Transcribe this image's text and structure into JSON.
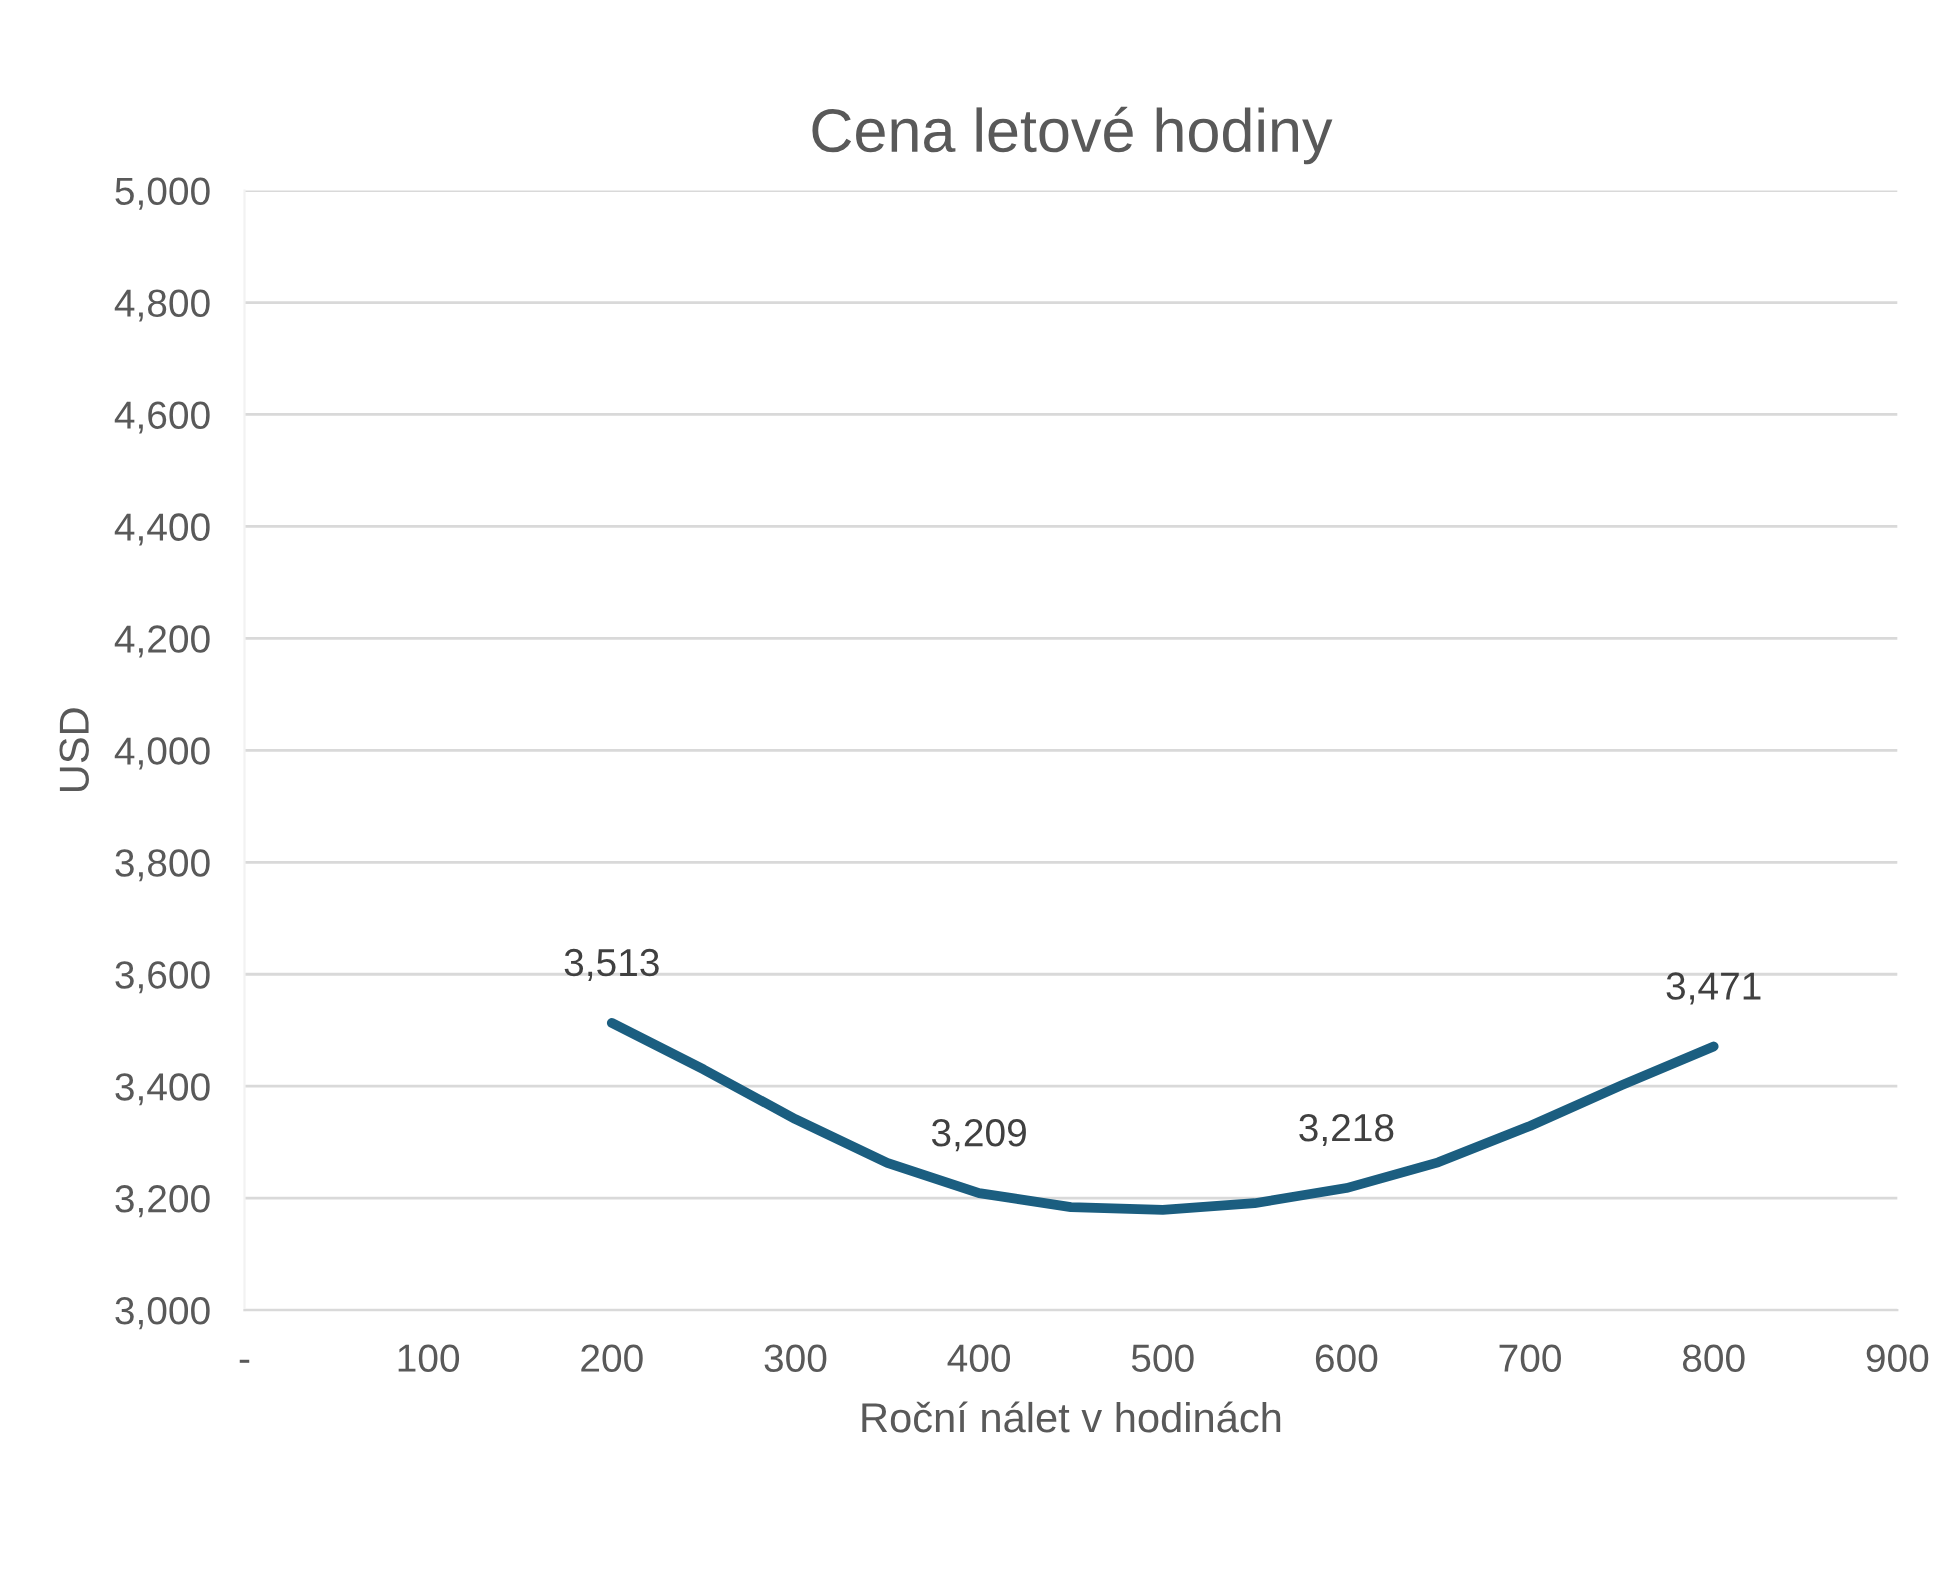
{
  "chart_data": {
    "type": "line",
    "title": "Cena letové hodiny",
    "xlabel": "Roční nálet v hodinách",
    "ylabel": "USD",
    "x": [
      200,
      250,
      300,
      350,
      400,
      450,
      500,
      550,
      600,
      650,
      700,
      750,
      800
    ],
    "series": [
      {
        "color": "#1b5e80",
        "values": [
          3513,
          3430,
          3341,
          3263,
          3209,
          3184,
          3179,
          3191,
          3218,
          3264,
          3329,
          3402,
          3471
        ],
        "value_labels": [
          "3,513",
          null,
          null,
          null,
          "3,209",
          null,
          null,
          null,
          "3,218",
          null,
          null,
          null,
          "3,471"
        ]
      }
    ],
    "xlim": [
      0,
      900
    ],
    "xticks": [
      {
        "value": 0,
        "label": "-"
      },
      100,
      200,
      300,
      400,
      500,
      600,
      700,
      800,
      900
    ],
    "ylim": [
      3000,
      5000
    ],
    "yticks": [
      {
        "value": 3000,
        "label": "3,000"
      },
      {
        "value": 3200,
        "label": "3,200"
      },
      {
        "value": 3400,
        "label": "3,400"
      },
      {
        "value": 3600,
        "label": "3,600"
      },
      {
        "value": 3800,
        "label": "3,800"
      },
      {
        "value": 4000,
        "label": "4,000"
      },
      {
        "value": 4200,
        "label": "4,200"
      },
      {
        "value": 4400,
        "label": "4,400"
      },
      {
        "value": 4600,
        "label": "4,600"
      },
      {
        "value": 4800,
        "label": "4,800"
      },
      {
        "value": 5000,
        "label": "5,000"
      }
    ],
    "grid": "y",
    "legend": false,
    "marker": "none",
    "line_style": "solid"
  }
}
